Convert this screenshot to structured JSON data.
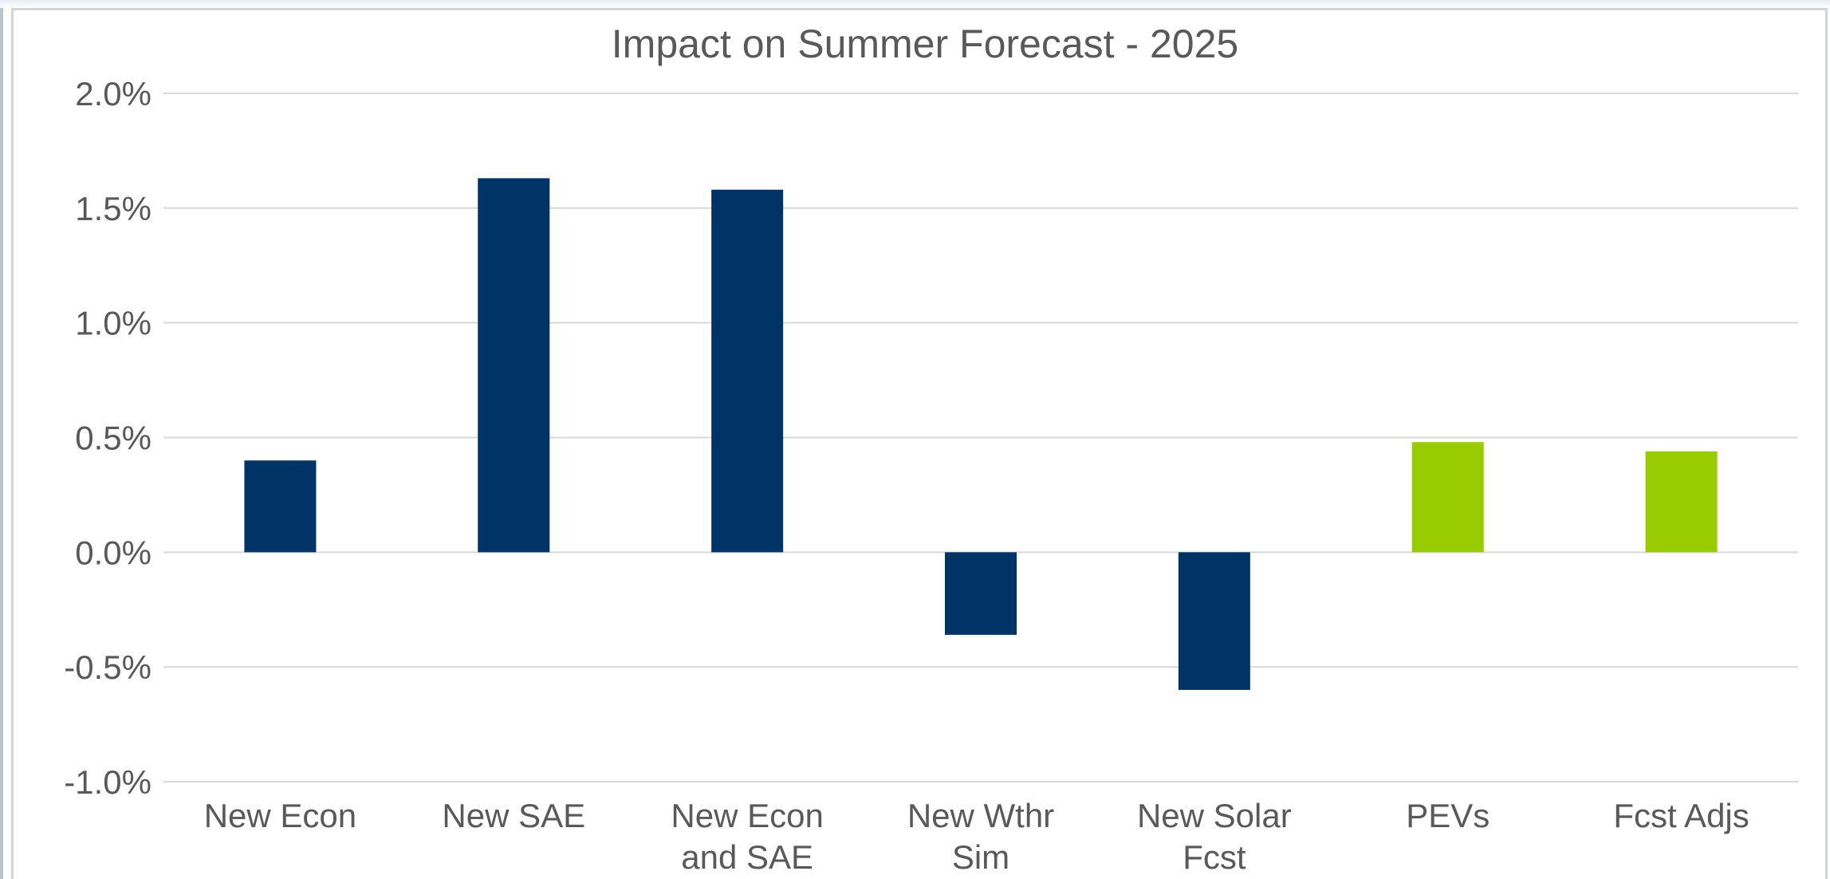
{
  "chart_data": {
    "type": "bar",
    "title": "Impact on Summer Forecast - 2025",
    "xlabel": "",
    "ylabel": "",
    "categories": [
      [
        "New Econ"
      ],
      [
        "New SAE"
      ],
      [
        "New Econ",
        "and SAE"
      ],
      [
        "New Wthr",
        "Sim"
      ],
      [
        "New Solar",
        "Fcst"
      ],
      [
        "PEVs"
      ],
      [
        "Fcst Adjs"
      ]
    ],
    "values": [
      0.4,
      1.63,
      1.58,
      -0.36,
      -0.6,
      0.48,
      0.44
    ],
    "value_unit": "percent",
    "bar_colors": [
      "#003366",
      "#003366",
      "#003366",
      "#003366",
      "#003366",
      "#99cc00",
      "#99cc00"
    ],
    "ylim": [
      -1.0,
      2.0
    ],
    "yticks": [
      2.0,
      1.5,
      1.0,
      0.5,
      0.0,
      -0.5,
      -1.0
    ],
    "ytick_labels": [
      "2.0%",
      "1.5%",
      "1.0%",
      "0.5%",
      "0.0%",
      "-0.5%",
      "-1.0%"
    ],
    "grid": true,
    "legend": "none"
  }
}
